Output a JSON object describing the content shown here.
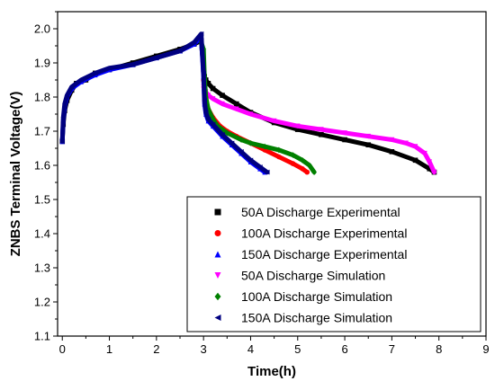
{
  "chart_data": {
    "type": "line",
    "xlabel": "Time(h)",
    "ylabel": "ZNBS Terminal Voltage(V)",
    "xlim": [
      -0.1,
      9
    ],
    "ylim": [
      1.1,
      2.05
    ],
    "xticks": [
      0,
      1,
      2,
      3,
      4,
      5,
      6,
      7,
      8,
      9
    ],
    "yticks": [
      1.1,
      1.2,
      1.3,
      1.4,
      1.5,
      1.6,
      1.7,
      1.8,
      1.9,
      2.0
    ],
    "xtick_labels": [
      "0",
      "1",
      "2",
      "3",
      "4",
      "5",
      "6",
      "7",
      "8",
      "9"
    ],
    "ytick_labels": [
      "1.1",
      "1.2",
      "1.3",
      "1.4",
      "1.5",
      "1.6",
      "1.7",
      "1.8",
      "1.9",
      "2.0"
    ],
    "grid": false,
    "legend_position": "bottom-right",
    "series": [
      {
        "name": "50A Discharge Experimental",
        "color": "#000000",
        "marker": "square",
        "x": [
          0,
          0.02,
          0.05,
          0.1,
          0.2,
          0.3,
          0.5,
          0.7,
          1.0,
          1.5,
          2.0,
          2.5,
          2.8,
          2.95,
          3.0,
          3.02,
          3.05,
          3.1,
          3.2,
          3.4,
          3.7,
          4.0,
          4.5,
          5.0,
          5.5,
          6.0,
          6.5,
          7.0,
          7.5,
          7.8,
          7.9
        ],
        "y": [
          1.67,
          1.72,
          1.76,
          1.79,
          1.82,
          1.84,
          1.85,
          1.87,
          1.88,
          1.9,
          1.92,
          1.94,
          1.955,
          1.965,
          1.88,
          1.86,
          1.85,
          1.84,
          1.825,
          1.805,
          1.78,
          1.755,
          1.725,
          1.705,
          1.69,
          1.675,
          1.66,
          1.64,
          1.615,
          1.59,
          1.58
        ]
      },
      {
        "name": "100A Discharge Experimental",
        "color": "#ff0000",
        "marker": "circle",
        "x": [
          3.0,
          3.02,
          3.05,
          3.1,
          3.2,
          3.35,
          3.5,
          3.7,
          4.0,
          4.3,
          4.6,
          4.9,
          5.1,
          5.2
        ],
        "y": [
          1.85,
          1.82,
          1.79,
          1.765,
          1.74,
          1.715,
          1.7,
          1.685,
          1.665,
          1.645,
          1.625,
          1.605,
          1.59,
          1.58
        ]
      },
      {
        "name": "150A Discharge Experimental",
        "color": "#0000ff",
        "marker": "triangle-up",
        "x": [
          0,
          0.02,
          0.05,
          0.1,
          0.2,
          0.4,
          0.7,
          1.0,
          1.5,
          2.0,
          2.5,
          2.8,
          2.95,
          3.0,
          3.02,
          3.05,
          3.1,
          3.2,
          3.4,
          3.6,
          3.8,
          4.0,
          4.2,
          4.3
        ],
        "y": [
          1.67,
          1.73,
          1.77,
          1.8,
          1.825,
          1.845,
          1.865,
          1.88,
          1.895,
          1.915,
          1.935,
          1.955,
          1.975,
          1.86,
          1.78,
          1.75,
          1.73,
          1.715,
          1.685,
          1.66,
          1.635,
          1.61,
          1.59,
          1.58
        ]
      },
      {
        "name": "50A Discharge Simulation",
        "color": "#ff00ff",
        "marker": "triangle-down",
        "x": [
          3.0,
          3.02,
          3.05,
          3.1,
          3.2,
          3.4,
          3.7,
          4.0,
          4.5,
          5.0,
          5.5,
          6.0,
          6.5,
          7.0,
          7.3,
          7.5,
          7.7,
          7.8,
          7.9
        ],
        "y": [
          1.83,
          1.82,
          1.815,
          1.805,
          1.795,
          1.78,
          1.765,
          1.75,
          1.73,
          1.715,
          1.705,
          1.695,
          1.685,
          1.675,
          1.665,
          1.655,
          1.635,
          1.61,
          1.58
        ]
      },
      {
        "name": "100A Discharge Simulation",
        "color": "#008000",
        "marker": "diamond",
        "x": [
          2.95,
          3.0,
          3.02,
          3.05,
          3.1,
          3.2,
          3.3,
          3.5,
          3.8,
          4.0,
          4.3,
          4.6,
          4.9,
          5.1,
          5.25,
          5.35
        ],
        "y": [
          1.96,
          1.94,
          1.86,
          1.8,
          1.765,
          1.735,
          1.715,
          1.695,
          1.675,
          1.665,
          1.655,
          1.645,
          1.63,
          1.615,
          1.6,
          1.58
        ]
      },
      {
        "name": "150A Discharge Simulation",
        "color": "#000080",
        "marker": "triangle-left",
        "x": [
          0,
          0.02,
          0.05,
          0.1,
          0.2,
          0.4,
          0.7,
          1.0,
          1.5,
          2.0,
          2.5,
          2.8,
          2.95,
          3.0,
          3.02,
          3.05,
          3.1,
          3.2,
          3.4,
          3.6,
          3.8,
          4.0,
          4.2,
          4.35
        ],
        "y": [
          1.67,
          1.74,
          1.78,
          1.805,
          1.83,
          1.85,
          1.87,
          1.885,
          1.895,
          1.915,
          1.935,
          1.96,
          1.985,
          1.87,
          1.79,
          1.755,
          1.735,
          1.72,
          1.69,
          1.665,
          1.64,
          1.615,
          1.595,
          1.58
        ]
      }
    ]
  }
}
